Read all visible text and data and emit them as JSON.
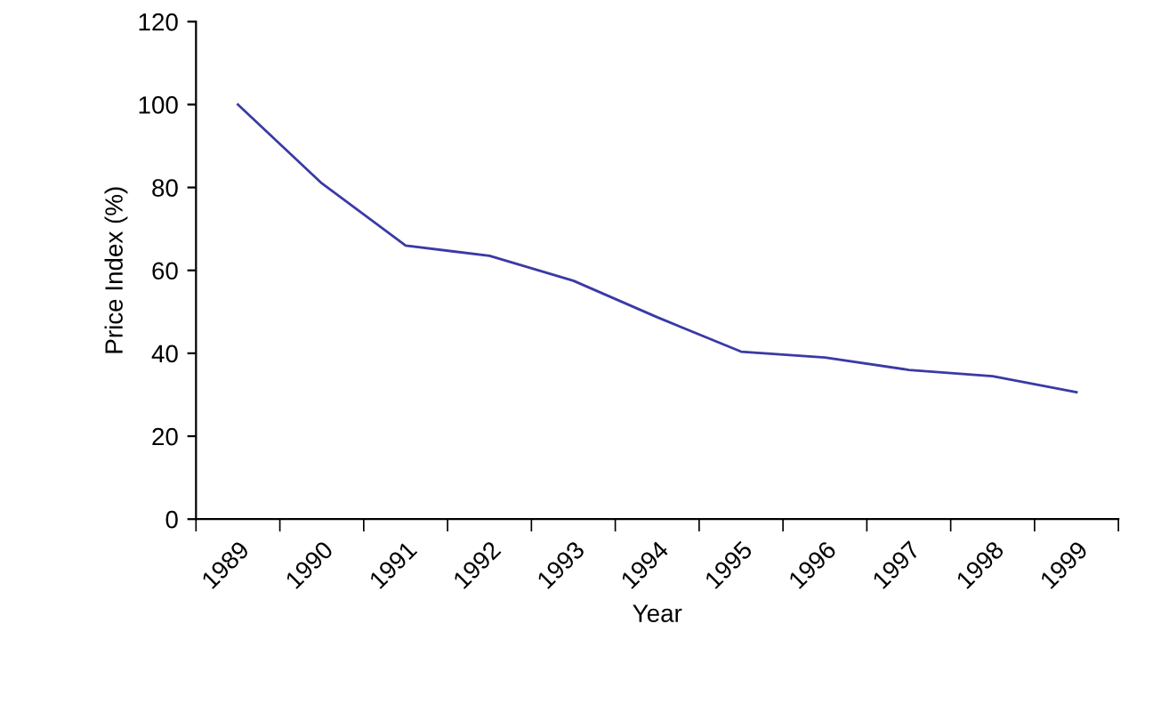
{
  "chart_data": {
    "type": "line",
    "xlabel": "Year",
    "ylabel": "Price Index (%)",
    "categories": [
      "1989",
      "1990",
      "1991",
      "1992",
      "1993",
      "1994",
      "1995",
      "1996",
      "1997",
      "1998",
      "1999"
    ],
    "series": [
      {
        "color": "#3a3aa6",
        "values": [
          100,
          81,
          66,
          63.5,
          57.5,
          48.7,
          40.4,
          39,
          36,
          34.5,
          30.6
        ]
      }
    ],
    "ylim": [
      0,
      120
    ],
    "yticks": [
      0,
      20,
      40,
      60,
      80,
      100,
      120
    ],
    "grid": false,
    "legend": false,
    "marker": "none",
    "line_style": "solid"
  }
}
